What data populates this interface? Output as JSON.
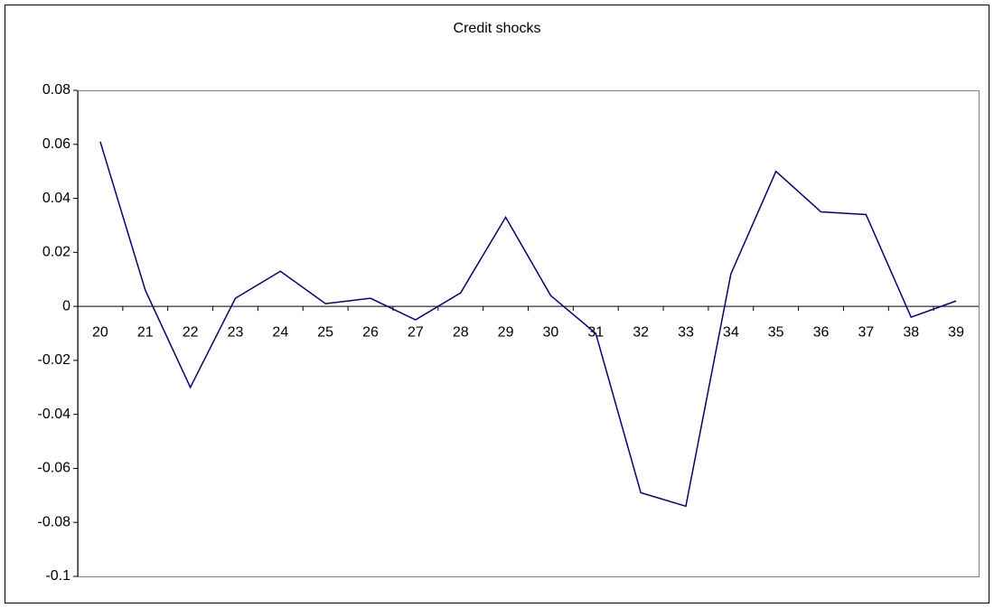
{
  "chart_data": {
    "type": "line",
    "title": "Credit shocks",
    "categories": [
      "20",
      "21",
      "22",
      "23",
      "24",
      "25",
      "26",
      "27",
      "28",
      "29",
      "30",
      "31",
      "32",
      "33",
      "34",
      "35",
      "36",
      "37",
      "38",
      "39"
    ],
    "series": [
      {
        "name": "Credit shocks",
        "color": "#000080",
        "values": [
          0.061,
          0.006,
          -0.03,
          0.003,
          0.013,
          0.001,
          0.003,
          -0.005,
          0.005,
          0.033,
          0.004,
          -0.01,
          -0.069,
          -0.074,
          0.012,
          0.05,
          0.035,
          0.034,
          -0.004,
          0.002
        ]
      }
    ],
    "ylim": [
      -0.1,
      0.08
    ],
    "yticks": [
      -0.1,
      -0.08,
      -0.06,
      -0.04,
      -0.02,
      0,
      0.02,
      0.04,
      0.06,
      0.08
    ],
    "grid": false
  }
}
